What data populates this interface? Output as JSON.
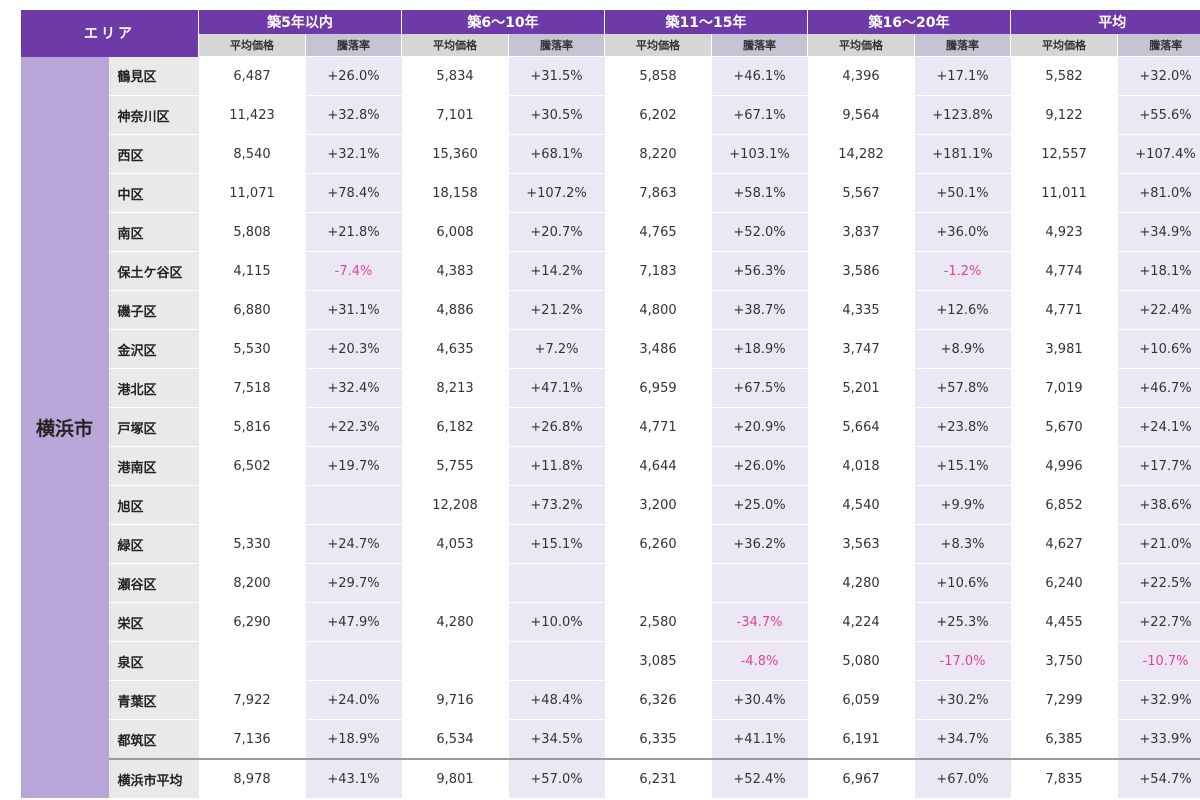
{
  "header": {
    "area_label": "エリア",
    "groups": [
      "築5年以内",
      "築6～10年",
      "築11～15年",
      "築16～20年",
      "平均"
    ],
    "sub_price": "平均価格",
    "sub_rate": "騰落率"
  },
  "city": "横浜市",
  "rows": [
    {
      "ward": "鶴見区",
      "cells": [
        "6,487",
        "+26.0%",
        "5,834",
        "+31.5%",
        "5,858",
        "+46.1%",
        "4,396",
        "+17.1%",
        "5,582",
        "+32.0%"
      ]
    },
    {
      "ward": "神奈川区",
      "cells": [
        "11,423",
        "+32.8%",
        "7,101",
        "+30.5%",
        "6,202",
        "+67.1%",
        "9,564",
        "+123.8%",
        "9,122",
        "+55.6%"
      ]
    },
    {
      "ward": "西区",
      "cells": [
        "8,540",
        "+32.1%",
        "15,360",
        "+68.1%",
        "8,220",
        "+103.1%",
        "14,282",
        "+181.1%",
        "12,557",
        "+107.4%"
      ]
    },
    {
      "ward": "中区",
      "cells": [
        "11,071",
        "+78.4%",
        "18,158",
        "+107.2%",
        "7,863",
        "+58.1%",
        "5,567",
        "+50.1%",
        "11,011",
        "+81.0%"
      ]
    },
    {
      "ward": "南区",
      "cells": [
        "5,808",
        "+21.8%",
        "6,008",
        "+20.7%",
        "4,765",
        "+52.0%",
        "3,837",
        "+36.0%",
        "4,923",
        "+34.9%"
      ]
    },
    {
      "ward": "保土ケ谷区",
      "cells": [
        "4,115",
        "-7.4%",
        "4,383",
        "+14.2%",
        "7,183",
        "+56.3%",
        "3,586",
        "-1.2%",
        "4,774",
        "+18.1%"
      ]
    },
    {
      "ward": "磯子区",
      "cells": [
        "6,880",
        "+31.1%",
        "4,886",
        "+21.2%",
        "4,800",
        "+38.7%",
        "4,335",
        "+12.6%",
        "4,771",
        "+22.4%"
      ]
    },
    {
      "ward": "金沢区",
      "cells": [
        "5,530",
        "+20.3%",
        "4,635",
        "+7.2%",
        "3,486",
        "+18.9%",
        "3,747",
        "+8.9%",
        "3,981",
        "+10.6%"
      ]
    },
    {
      "ward": "港北区",
      "cells": [
        "7,518",
        "+32.4%",
        "8,213",
        "+47.1%",
        "6,959",
        "+67.5%",
        "5,201",
        "+57.8%",
        "7,019",
        "+46.7%"
      ]
    },
    {
      "ward": "戸塚区",
      "cells": [
        "5,816",
        "+22.3%",
        "6,182",
        "+26.8%",
        "4,771",
        "+20.9%",
        "5,664",
        "+23.8%",
        "5,670",
        "+24.1%"
      ]
    },
    {
      "ward": "港南区",
      "cells": [
        "6,502",
        "+19.7%",
        "5,755",
        "+11.8%",
        "4,644",
        "+26.0%",
        "4,018",
        "+15.1%",
        "4,996",
        "+17.7%"
      ]
    },
    {
      "ward": "旭区",
      "cells": [
        "",
        "",
        "12,208",
        "+73.2%",
        "3,200",
        "+25.0%",
        "4,540",
        "+9.9%",
        "6,852",
        "+38.6%"
      ]
    },
    {
      "ward": "緑区",
      "cells": [
        "5,330",
        "+24.7%",
        "4,053",
        "+15.1%",
        "6,260",
        "+36.2%",
        "3,563",
        "+8.3%",
        "4,627",
        "+21.0%"
      ]
    },
    {
      "ward": "瀬谷区",
      "cells": [
        "8,200",
        "+29.7%",
        "",
        "",
        "",
        "",
        "4,280",
        "+10.6%",
        "6,240",
        "+22.5%"
      ]
    },
    {
      "ward": "栄区",
      "cells": [
        "6,290",
        "+47.9%",
        "4,280",
        "+10.0%",
        "2,580",
        "-34.7%",
        "4,224",
        "+25.3%",
        "4,455",
        "+22.7%"
      ]
    },
    {
      "ward": "泉区",
      "cells": [
        "",
        "",
        "",
        "",
        "3,085",
        "-4.8%",
        "5,080",
        "-17.0%",
        "3,750",
        "-10.7%"
      ]
    },
    {
      "ward": "青葉区",
      "cells": [
        "7,922",
        "+24.0%",
        "9,716",
        "+48.4%",
        "6,326",
        "+30.4%",
        "6,059",
        "+30.2%",
        "7,299",
        "+32.9%"
      ]
    },
    {
      "ward": "都筑区",
      "cells": [
        "7,136",
        "+18.9%",
        "6,534",
        "+34.5%",
        "6,335",
        "+41.1%",
        "6,191",
        "+34.7%",
        "6,385",
        "+33.9%"
      ]
    }
  ],
  "average_row": {
    "ward": "横浜市平均",
    "cells": [
      "8,978",
      "+43.1%",
      "9,801",
      "+57.0%",
      "6,231",
      "+52.4%",
      "6,967",
      "+67.0%",
      "7,835",
      "+54.7%"
    ]
  },
  "colors": {
    "header": "#6d3aa8",
    "city_cell": "#b9a6d8",
    "negative": "#e0449c"
  }
}
